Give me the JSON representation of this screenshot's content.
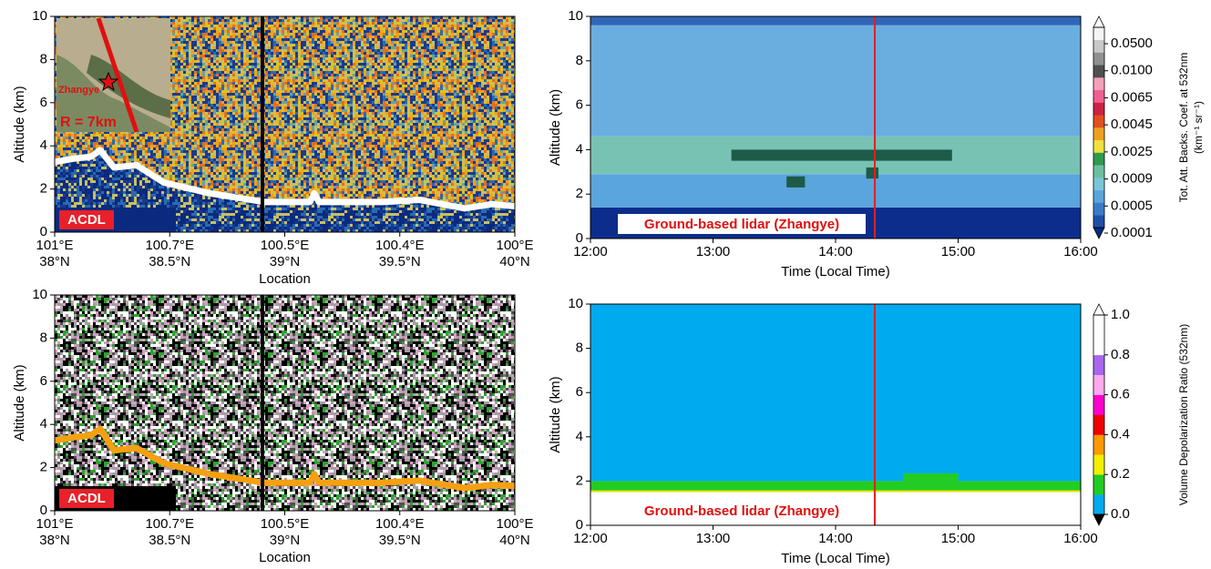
{
  "chart_data": [
    {
      "type": "curtain",
      "ylabel": "Altitude (km)",
      "xlabel": "Location",
      "xlim": [
        0,
        4
      ],
      "ylim": [
        0,
        10
      ],
      "yticks": [
        0,
        2,
        4,
        6,
        8,
        10
      ],
      "xticks": [
        {
          "value": 0,
          "label": [
            "101°E",
            "38°N"
          ]
        },
        {
          "value": 1,
          "label": [
            "100.7°E",
            "38.5°N"
          ]
        },
        {
          "value": 2,
          "label": [
            "100.5°E",
            "39°N"
          ]
        },
        {
          "value": 3,
          "label": [
            "100.4°E",
            "39.5°N"
          ]
        },
        {
          "value": 4,
          "label": [
            "100°E",
            "40°N"
          ]
        }
      ],
      "noise_colors": [
        "#1a3a8c",
        "#2a6ab0",
        "#e0c020",
        "#f0a020",
        "#6aa0a0",
        "#c8c060",
        "#e07020",
        "#1a3a8c"
      ],
      "surface_noise_colors": [
        "#0a2a80",
        "#1a3a8c",
        "#2a6ab0",
        "#0a2a80",
        "#c8c060"
      ],
      "series": [
        {
          "color": "#ffffff",
          "x": [
            0,
            0.158,
            0.317,
            0.396,
            0.515,
            0.713,
            0.95,
            1.347,
            1.822,
            2.218,
            2.257,
            2.297,
            2.851,
            3.168,
            3.564,
            3.802,
            4
          ],
          "values": [
            3.25,
            3.4,
            3.5,
            3.8,
            3.0,
            3.1,
            2.3,
            1.8,
            1.4,
            1.4,
            1.8,
            1.4,
            1.4,
            1.5,
            1.1,
            1.3,
            1.2
          ]
        }
      ],
      "marker_x": 1.806,
      "marker_color": "#000000",
      "label": "ACDL",
      "label_color": "#e8202a",
      "base_color": "#0a2a80",
      "inset": {
        "place": "Zhangye",
        "radius": "R = 7km"
      }
    },
    {
      "type": "curtain",
      "ylabel": "Altitude (km)",
      "xlabel": "Location",
      "xlim": [
        0,
        4
      ],
      "ylim": [
        0,
        10
      ],
      "yticks": [
        0,
        2,
        4,
        6,
        8,
        10
      ],
      "xticks": [
        {
          "value": 0,
          "label": [
            "101°E",
            "38°N"
          ]
        },
        {
          "value": 1,
          "label": [
            "100.7°E",
            "38.5°N"
          ]
        },
        {
          "value": 2,
          "label": [
            "100.5°E",
            "39°N"
          ]
        },
        {
          "value": 3,
          "label": [
            "100.4°E",
            "39.5°N"
          ]
        },
        {
          "value": 4,
          "label": [
            "100°E",
            "40°N"
          ]
        }
      ],
      "noise_colors": [
        "#000000",
        "#ffffff",
        "#30a030",
        "#d0a0c0",
        "#505050",
        "#a0a0a0",
        "#000000",
        "#ffffff"
      ],
      "series": [
        {
          "color": "#f5a010",
          "x": [
            0,
            0.158,
            0.317,
            0.396,
            0.515,
            0.713,
            0.95,
            1.347,
            1.822,
            2.218,
            2.257,
            2.297,
            2.851,
            3.168,
            3.564,
            3.802,
            4
          ],
          "values": [
            3.25,
            3.4,
            3.5,
            3.8,
            2.8,
            2.9,
            2.2,
            1.7,
            1.3,
            1.3,
            1.7,
            1.3,
            1.3,
            1.4,
            1.05,
            1.2,
            1.15
          ]
        }
      ],
      "marker_x": 1.806,
      "marker_color": "#000000",
      "label": "ACDL",
      "label_color": "#e8202a",
      "base_color": "#000000"
    },
    {
      "type": "time-height",
      "ylabel": "Altitude (km)",
      "xlabel": "Time (Local Time)",
      "xlim": [
        12,
        16
      ],
      "ylim": [
        0,
        10
      ],
      "yticks": [
        0,
        2,
        4,
        6,
        8,
        10
      ],
      "xticks": [
        {
          "value": 12,
          "label": "12:00"
        },
        {
          "value": 13,
          "label": "13:00"
        },
        {
          "value": 14,
          "label": "14:00"
        },
        {
          "value": 15,
          "label": "15:00"
        },
        {
          "value": 16,
          "label": "16:00"
        }
      ],
      "layers": [
        {
          "from": 0,
          "to": 1.4,
          "color": "#0d2d8c"
        },
        {
          "from": 1.4,
          "to": 2.9,
          "color": "#5aa5dc"
        },
        {
          "from": 2.9,
          "to": 4.6,
          "color": "#78c2b4"
        },
        {
          "from": 4.6,
          "to": 9.6,
          "color": "#6aaee0"
        },
        {
          "from": 9.6,
          "to": 10,
          "color": "#2f66b8"
        }
      ],
      "patches": [
        {
          "x": [
            13.15,
            14.95
          ],
          "y": [
            3.5,
            4.0
          ],
          "color": "#1d5a48"
        },
        {
          "x": [
            13.6,
            13.75
          ],
          "y": [
            2.3,
            2.8
          ],
          "color": "#1d5a48"
        },
        {
          "x": [
            14.25,
            14.35
          ],
          "y": [
            2.7,
            3.2
          ],
          "color": "#1d5a48"
        }
      ],
      "marker_x": 14.32,
      "marker_color": "#e02020",
      "label": "Ground-based lidar (Zhangye)",
      "colorbar": {
        "label": [
          "Tot. Att. Backs. Coef. at 532nm",
          "(km⁻¹ sr⁻¹)"
        ],
        "ticks": [
          0.0001,
          0.0005,
          0.0009,
          0.0025,
          0.0045,
          0.0065,
          {
            "value": 0.01,
            "label": "0.0100"
          },
          {
            "value": 0.05,
            "label": "0.0500"
          }
        ],
        "colors": [
          "#1f4fa8",
          "#3a7cc8",
          "#5aa5dc",
          "#7cc4d8",
          "#6cc0a0",
          "#2e9a50",
          "#f0e040",
          "#f0a020",
          "#e05020",
          "#d02040",
          "#f06090",
          "#f4a0b8",
          "#505050",
          "#909090",
          "#c8c8c8",
          "#f4f4f4"
        ],
        "under_color": "#0a2a80",
        "over_color": "#ffffff"
      }
    },
    {
      "type": "time-height",
      "ylabel": "Altitude (km)",
      "xlabel": "Time (Local Time)",
      "xlim": [
        12,
        16
      ],
      "ylim": [
        0,
        10
      ],
      "yticks": [
        0,
        2,
        4,
        6,
        8,
        10
      ],
      "xticks": [
        {
          "value": 12,
          "label": "12:00"
        },
        {
          "value": 13,
          "label": "13:00"
        },
        {
          "value": 14,
          "label": "14:00"
        },
        {
          "value": 15,
          "label": "15:00"
        },
        {
          "value": 16,
          "label": "16:00"
        }
      ],
      "layers": [
        {
          "from": 1.5,
          "to": 1.58,
          "color": "#e8e000"
        },
        {
          "from": 1.58,
          "to": 2.0,
          "color": "#22cc22"
        },
        {
          "from": 2.0,
          "to": 10,
          "color": "#00aaee"
        }
      ],
      "patches": [
        {
          "x": [
            14.55,
            15.0
          ],
          "y": [
            2.0,
            2.35
          ],
          "color": "#22cc22"
        }
      ],
      "marker_x": 14.32,
      "marker_color": "#e02020",
      "label": "Ground-based lidar (Zhangye)",
      "colorbar": {
        "label": [
          "Volume Depolarization Ratio (532nm)"
        ],
        "lim": [
          0,
          1
        ],
        "ticks": [
          {
            "value": 0,
            "label": "0.0"
          },
          0.2,
          0.4,
          0.6,
          0.8,
          {
            "value": 1,
            "label": "1.0"
          }
        ],
        "colors": [
          "#00aaee",
          "#22cc22",
          "#f0f000",
          "#ff9900",
          "#ee0000",
          "#ff00cc",
          "#ffaaee",
          "#aa66ee",
          "#ffffff",
          "#ffffff"
        ],
        "under_color": "#000000",
        "over_color": "#ffffff"
      }
    }
  ]
}
